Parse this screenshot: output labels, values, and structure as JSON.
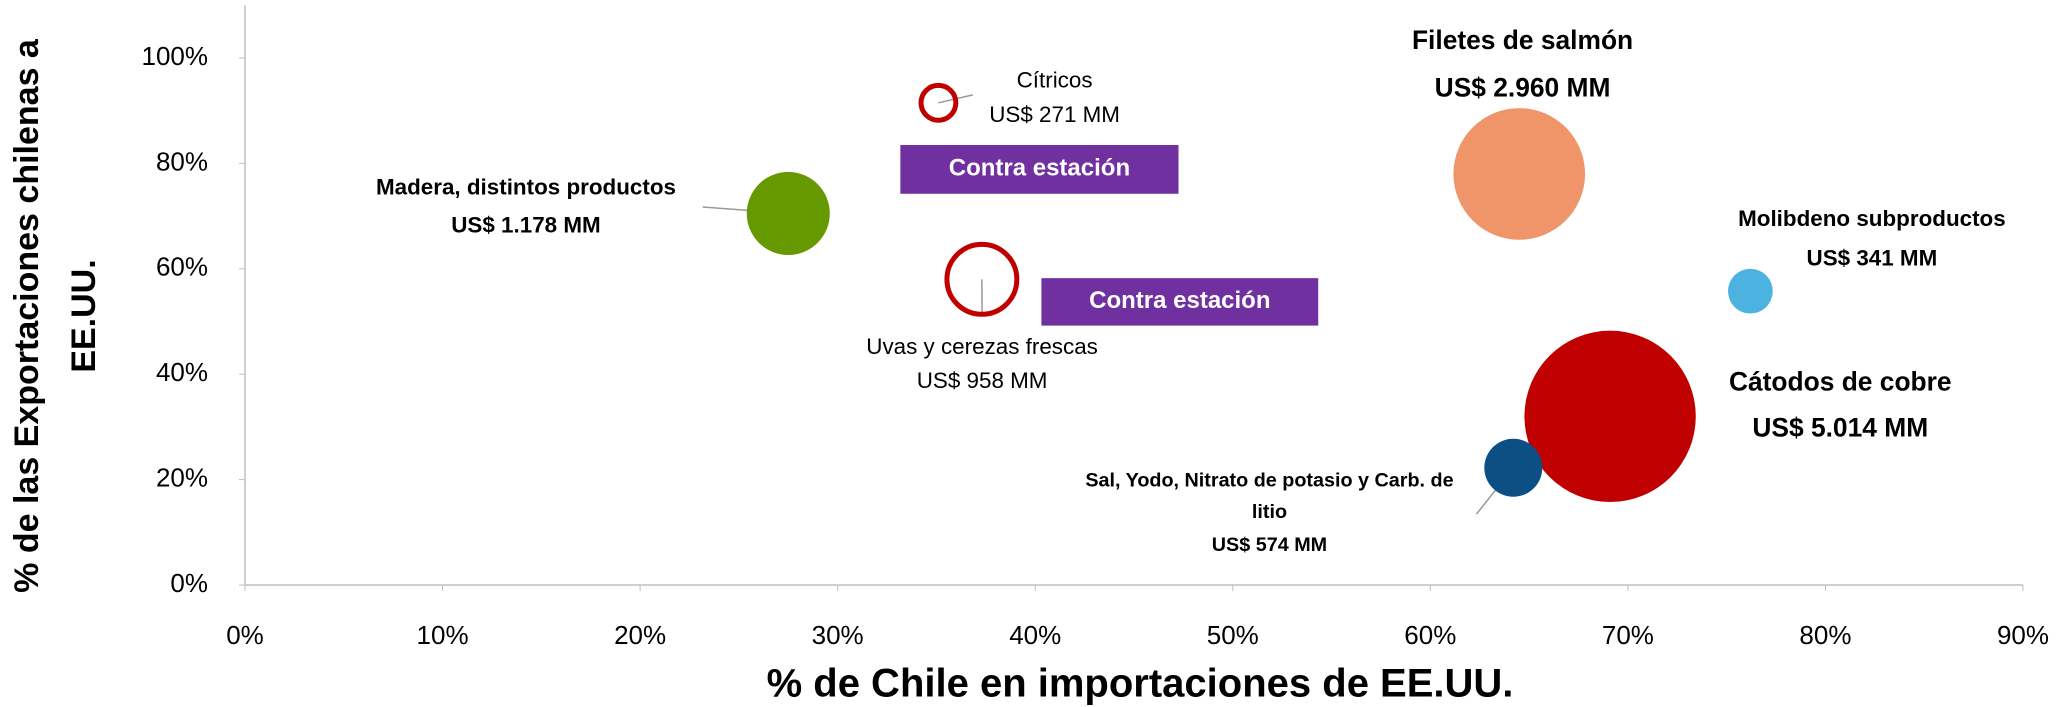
{
  "chart_data": {
    "type": "bubble",
    "xlabel": "% de Chile en importaciones de EE.UU.",
    "ylabel": [
      "% de las Exportaciones chilenas a",
      "EE.UU."
    ],
    "xlim": [
      0,
      90
    ],
    "ylim": [
      0,
      110
    ],
    "xticks": [
      {
        "value": 0,
        "label": "0%"
      },
      {
        "value": 10,
        "label": "10%"
      },
      {
        "value": 20,
        "label": "20%"
      },
      {
        "value": 30,
        "label": "30%"
      },
      {
        "value": 40,
        "label": "40%"
      },
      {
        "value": 50,
        "label": "50%"
      },
      {
        "value": 60,
        "label": "60%"
      },
      {
        "value": 70,
        "label": "70%"
      },
      {
        "value": 80,
        "label": "80%"
      },
      {
        "value": 90,
        "label": "90%"
      }
    ],
    "yticks": [
      {
        "value": 0,
        "label": "0%"
      },
      {
        "value": 20,
        "label": "20%"
      },
      {
        "value": 40,
        "label": "40%"
      },
      {
        "value": 60,
        "label": "60%"
      },
      {
        "value": 80,
        "label": "80%"
      },
      {
        "value": 100,
        "label": "100%"
      }
    ],
    "points": [
      {
        "name": "Cítricos",
        "x": 35.1,
        "y": 91.5,
        "size": 271,
        "size_label": "US$ 271 MM",
        "color": "#c00000",
        "hollow": true
      },
      {
        "name": "Madera, distintos productos",
        "x": 27.5,
        "y": 70.5,
        "size": 1178,
        "size_label": "US$ 1.178  MM",
        "color": "#669900",
        "hollow": false
      },
      {
        "name": "Uvas y cerezas frescas",
        "x": 37.3,
        "y": 58,
        "size": 958,
        "size_label": "US$ 958 MM",
        "color": "#c00000",
        "hollow": true
      },
      {
        "name": "Filetes de salmón",
        "x": 64.5,
        "y": 78,
        "size": 2960,
        "size_label": "US$ 2.960  MM",
        "color": "#f0956a",
        "hollow": false
      },
      {
        "name": "Molibdeno subproductos",
        "x": 76.2,
        "y": 55.75,
        "size": 341,
        "size_label": "US$ 341 MM",
        "color": "#4cb3e0",
        "hollow": false
      },
      {
        "name": "Cátodos de cobre",
        "x": 69.1,
        "y": 32,
        "size": 5014,
        "size_label": "US$ 5.014 MM",
        "color": "#c00000",
        "hollow": false
      },
      {
        "name": [
          "Sal, Yodo, Nitrato de potasio y Carb. de",
          "litio"
        ],
        "x": 64.2,
        "y": 22.25,
        "size": 574,
        "size_label": "US$ 574 MM",
        "color": "#0b4f85",
        "hollow": false
      }
    ],
    "annotations": [
      {
        "text": "Contra estación",
        "color": "#7030a0"
      },
      {
        "text": "Contra estación",
        "color": "#7030a0"
      }
    ]
  }
}
